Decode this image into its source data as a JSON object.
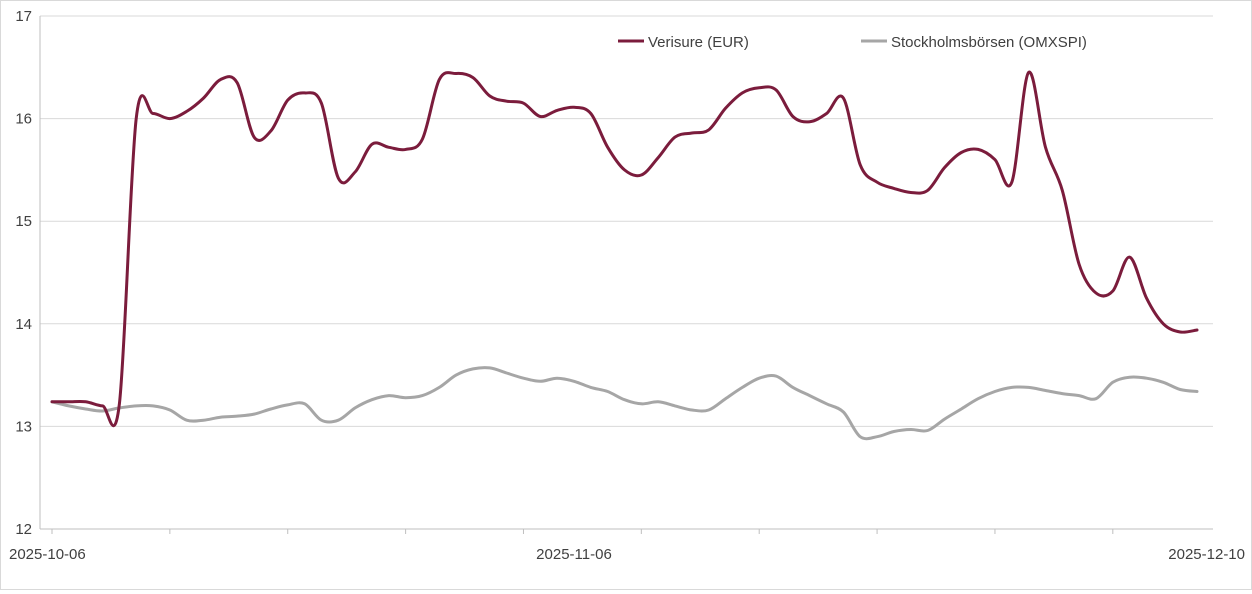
{
  "chart_data": {
    "type": "line",
    "ylim": [
      12,
      17
    ],
    "yticks": [
      12,
      13,
      14,
      15,
      16,
      17
    ],
    "x_tick_labels": [
      "2025-10-06",
      "2025-11-06",
      "2025-12-10"
    ],
    "x_tick_label_dates": [
      "2025-10-06",
      "2025-11-06",
      "2025-12-10"
    ],
    "x_range": [
      "2025-10-06",
      "2025-12-10"
    ],
    "grid": "horizontal",
    "legend_position": "top",
    "series": [
      {
        "name": "Verisure (EUR)",
        "color": "#7b1c3c",
        "points": [
          [
            "2025-10-06",
            13.24
          ],
          [
            "2025-10-07",
            13.24
          ],
          [
            "2025-10-08",
            13.24
          ],
          [
            "2025-10-09",
            13.2
          ],
          [
            "2025-10-10",
            13.22
          ],
          [
            "2025-10-11",
            16.0
          ],
          [
            "2025-10-12",
            16.05
          ],
          [
            "2025-10-13",
            16.0
          ],
          [
            "2025-10-14",
            16.07
          ],
          [
            "2025-10-15",
            16.2
          ],
          [
            "2025-10-16",
            16.38
          ],
          [
            "2025-10-17",
            16.35
          ],
          [
            "2025-10-18",
            15.82
          ],
          [
            "2025-10-19",
            15.88
          ],
          [
            "2025-10-20",
            16.18
          ],
          [
            "2025-10-21",
            16.25
          ],
          [
            "2025-10-22",
            16.15
          ],
          [
            "2025-10-23",
            15.42
          ],
          [
            "2025-10-24",
            15.48
          ],
          [
            "2025-10-25",
            15.75
          ],
          [
            "2025-10-26",
            15.72
          ],
          [
            "2025-10-27",
            15.7
          ],
          [
            "2025-10-28",
            15.8
          ],
          [
            "2025-10-29",
            16.38
          ],
          [
            "2025-10-30",
            16.44
          ],
          [
            "2025-10-31",
            16.4
          ],
          [
            "2025-11-01",
            16.22
          ],
          [
            "2025-11-02",
            16.17
          ],
          [
            "2025-11-03",
            16.15
          ],
          [
            "2025-11-04",
            16.02
          ],
          [
            "2025-11-05",
            16.08
          ],
          [
            "2025-11-06",
            16.11
          ],
          [
            "2025-11-07",
            16.05
          ],
          [
            "2025-11-08",
            15.72
          ],
          [
            "2025-11-09",
            15.5
          ],
          [
            "2025-11-10",
            15.45
          ],
          [
            "2025-11-11",
            15.62
          ],
          [
            "2025-11-12",
            15.82
          ],
          [
            "2025-11-13",
            15.86
          ],
          [
            "2025-11-14",
            15.89
          ],
          [
            "2025-11-15",
            16.1
          ],
          [
            "2025-11-16",
            16.25
          ],
          [
            "2025-11-17",
            16.3
          ],
          [
            "2025-11-18",
            16.28
          ],
          [
            "2025-11-19",
            16.02
          ],
          [
            "2025-11-20",
            15.97
          ],
          [
            "2025-11-21",
            16.05
          ],
          [
            "2025-11-22",
            16.2
          ],
          [
            "2025-11-23",
            15.55
          ],
          [
            "2025-11-24",
            15.38
          ],
          [
            "2025-11-25",
            15.32
          ],
          [
            "2025-11-26",
            15.28
          ],
          [
            "2025-11-27",
            15.3
          ],
          [
            "2025-11-28",
            15.52
          ],
          [
            "2025-11-29",
            15.67
          ],
          [
            "2025-11-30",
            15.7
          ],
          [
            "2025-12-01",
            15.6
          ],
          [
            "2025-12-02",
            15.38
          ],
          [
            "2025-12-03",
            16.45
          ],
          [
            "2025-12-04",
            15.72
          ],
          [
            "2025-12-05",
            15.3
          ],
          [
            "2025-12-06",
            14.58
          ],
          [
            "2025-12-07",
            14.3
          ],
          [
            "2025-12-08",
            14.32
          ],
          [
            "2025-12-09",
            14.65
          ],
          [
            "2025-12-10",
            14.25
          ],
          [
            "2025-12-11",
            14.0
          ],
          [
            "2025-12-12",
            13.92
          ],
          [
            "2025-12-13",
            13.94
          ]
        ]
      },
      {
        "name": "Stockholmsbörsen (OMXSPI)",
        "color": "#a6a6a6",
        "points": [
          [
            "2025-10-06",
            13.24
          ],
          [
            "2025-10-07",
            13.2
          ],
          [
            "2025-10-08",
            13.17
          ],
          [
            "2025-10-09",
            13.15
          ],
          [
            "2025-10-10",
            13.18
          ],
          [
            "2025-10-11",
            13.2
          ],
          [
            "2025-10-12",
            13.2
          ],
          [
            "2025-10-13",
            13.16
          ],
          [
            "2025-10-14",
            13.06
          ],
          [
            "2025-10-15",
            13.06
          ],
          [
            "2025-10-16",
            13.09
          ],
          [
            "2025-10-17",
            13.1
          ],
          [
            "2025-10-18",
            13.12
          ],
          [
            "2025-10-19",
            13.17
          ],
          [
            "2025-10-20",
            13.21
          ],
          [
            "2025-10-21",
            13.22
          ],
          [
            "2025-10-22",
            13.06
          ],
          [
            "2025-10-23",
            13.06
          ],
          [
            "2025-10-24",
            13.18
          ],
          [
            "2025-10-25",
            13.26
          ],
          [
            "2025-10-26",
            13.3
          ],
          [
            "2025-10-27",
            13.28
          ],
          [
            "2025-10-28",
            13.3
          ],
          [
            "2025-10-29",
            13.38
          ],
          [
            "2025-10-30",
            13.5
          ],
          [
            "2025-10-31",
            13.56
          ],
          [
            "2025-11-01",
            13.57
          ],
          [
            "2025-11-02",
            13.52
          ],
          [
            "2025-11-03",
            13.47
          ],
          [
            "2025-11-04",
            13.44
          ],
          [
            "2025-11-05",
            13.47
          ],
          [
            "2025-11-06",
            13.44
          ],
          [
            "2025-11-07",
            13.38
          ],
          [
            "2025-11-08",
            13.34
          ],
          [
            "2025-11-09",
            13.26
          ],
          [
            "2025-11-10",
            13.22
          ],
          [
            "2025-11-11",
            13.24
          ],
          [
            "2025-11-12",
            13.2
          ],
          [
            "2025-11-13",
            13.16
          ],
          [
            "2025-11-14",
            13.16
          ],
          [
            "2025-11-15",
            13.27
          ],
          [
            "2025-11-16",
            13.38
          ],
          [
            "2025-11-17",
            13.47
          ],
          [
            "2025-11-18",
            13.49
          ],
          [
            "2025-11-19",
            13.38
          ],
          [
            "2025-11-20",
            13.3
          ],
          [
            "2025-11-21",
            13.22
          ],
          [
            "2025-11-22",
            13.14
          ],
          [
            "2025-11-23",
            12.9
          ],
          [
            "2025-11-24",
            12.9
          ],
          [
            "2025-11-25",
            12.95
          ],
          [
            "2025-11-26",
            12.97
          ],
          [
            "2025-11-27",
            12.96
          ],
          [
            "2025-11-28",
            13.07
          ],
          [
            "2025-11-29",
            13.17
          ],
          [
            "2025-11-30",
            13.27
          ],
          [
            "2025-12-01",
            13.34
          ],
          [
            "2025-12-02",
            13.38
          ],
          [
            "2025-12-03",
            13.38
          ],
          [
            "2025-12-04",
            13.35
          ],
          [
            "2025-12-05",
            13.32
          ],
          [
            "2025-12-06",
            13.3
          ],
          [
            "2025-12-07",
            13.27
          ],
          [
            "2025-12-08",
            13.43
          ],
          [
            "2025-12-09",
            13.48
          ],
          [
            "2025-12-10",
            13.47
          ],
          [
            "2025-12-11",
            13.43
          ],
          [
            "2025-12-12",
            13.36
          ],
          [
            "2025-12-13",
            13.34
          ]
        ]
      }
    ]
  }
}
